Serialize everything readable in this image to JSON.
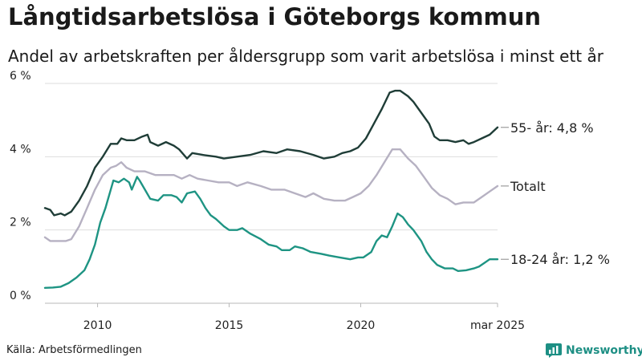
{
  "title": "Långtidsarbetslösa i Göteborgs kommun",
  "subtitle": "Andel av arbetskraften per åldersgrupp som varit arbetslösa i minst ett år",
  "source": "Källa: Arbetsförmedlingen",
  "brand": {
    "name": "Newsworthy",
    "icon": "newsworthy-logo-icon",
    "color": "#1d8f84"
  },
  "chart_data": {
    "type": "line",
    "xlim": [
      2008.0,
      2025.2
    ],
    "ylim": [
      0,
      6
    ],
    "grid": true,
    "x_ticks": [
      {
        "value": 2010,
        "label": "2010"
      },
      {
        "value": 2015,
        "label": "2015"
      },
      {
        "value": 2020,
        "label": "2020"
      },
      {
        "value": 2025.2,
        "label": "mar 2025"
      }
    ],
    "y_ticks": [
      {
        "value": 0,
        "label": "0 %"
      },
      {
        "value": 2,
        "label": "2 %"
      },
      {
        "value": 4,
        "label": "4 %"
      },
      {
        "value": 6,
        "label": "6 %"
      }
    ],
    "series": [
      {
        "name": "55- år",
        "end_label": "55- år: 4,8 %",
        "color": "#1f3d37",
        "points": [
          [
            2008.0,
            2.6
          ],
          [
            2008.2,
            2.55
          ],
          [
            2008.35,
            2.4
          ],
          [
            2008.6,
            2.45
          ],
          [
            2008.75,
            2.4
          ],
          [
            2009.0,
            2.5
          ],
          [
            2009.3,
            2.8
          ],
          [
            2009.6,
            3.2
          ],
          [
            2009.9,
            3.7
          ],
          [
            2010.2,
            4.0
          ],
          [
            2010.5,
            4.35
          ],
          [
            2010.75,
            4.35
          ],
          [
            2010.9,
            4.5
          ],
          [
            2011.1,
            4.45
          ],
          [
            2011.4,
            4.45
          ],
          [
            2011.7,
            4.55
          ],
          [
            2011.9,
            4.6
          ],
          [
            2012.0,
            4.4
          ],
          [
            2012.3,
            4.3
          ],
          [
            2012.6,
            4.4
          ],
          [
            2012.9,
            4.3
          ],
          [
            2013.1,
            4.2
          ],
          [
            2013.4,
            3.95
          ],
          [
            2013.6,
            4.1
          ],
          [
            2014.0,
            4.05
          ],
          [
            2014.5,
            4.0
          ],
          [
            2014.8,
            3.95
          ],
          [
            2015.3,
            4.0
          ],
          [
            2015.8,
            4.05
          ],
          [
            2016.3,
            4.15
          ],
          [
            2016.8,
            4.1
          ],
          [
            2017.2,
            4.2
          ],
          [
            2017.7,
            4.15
          ],
          [
            2018.2,
            4.05
          ],
          [
            2018.6,
            3.95
          ],
          [
            2019.0,
            4.0
          ],
          [
            2019.3,
            4.1
          ],
          [
            2019.6,
            4.15
          ],
          [
            2019.9,
            4.25
          ],
          [
            2020.2,
            4.5
          ],
          [
            2020.5,
            4.9
          ],
          [
            2020.8,
            5.3
          ],
          [
            2021.1,
            5.75
          ],
          [
            2021.3,
            5.8
          ],
          [
            2021.5,
            5.8
          ],
          [
            2021.8,
            5.65
          ],
          [
            2022.0,
            5.5
          ],
          [
            2022.3,
            5.2
          ],
          [
            2022.6,
            4.9
          ],
          [
            2022.8,
            4.55
          ],
          [
            2023.0,
            4.45
          ],
          [
            2023.3,
            4.45
          ],
          [
            2023.6,
            4.4
          ],
          [
            2023.9,
            4.45
          ],
          [
            2024.1,
            4.35
          ],
          [
            2024.3,
            4.4
          ],
          [
            2024.6,
            4.5
          ],
          [
            2024.9,
            4.6
          ],
          [
            2025.2,
            4.8
          ]
        ]
      },
      {
        "name": "Totalt",
        "end_label": "Totalt",
        "color": "#b6b1c2",
        "points": [
          [
            2008.0,
            1.8
          ],
          [
            2008.2,
            1.7
          ],
          [
            2008.5,
            1.7
          ],
          [
            2008.8,
            1.7
          ],
          [
            2009.0,
            1.75
          ],
          [
            2009.3,
            2.1
          ],
          [
            2009.6,
            2.6
          ],
          [
            2009.9,
            3.1
          ],
          [
            2010.2,
            3.5
          ],
          [
            2010.5,
            3.7
          ],
          [
            2010.7,
            3.75
          ],
          [
            2010.9,
            3.85
          ],
          [
            2011.1,
            3.7
          ],
          [
            2011.4,
            3.6
          ],
          [
            2011.8,
            3.6
          ],
          [
            2012.2,
            3.5
          ],
          [
            2012.6,
            3.5
          ],
          [
            2012.9,
            3.5
          ],
          [
            2013.2,
            3.4
          ],
          [
            2013.5,
            3.5
          ],
          [
            2013.8,
            3.4
          ],
          [
            2014.2,
            3.35
          ],
          [
            2014.6,
            3.3
          ],
          [
            2015.0,
            3.3
          ],
          [
            2015.3,
            3.2
          ],
          [
            2015.7,
            3.3
          ],
          [
            2016.2,
            3.2
          ],
          [
            2016.6,
            3.1
          ],
          [
            2017.1,
            3.1
          ],
          [
            2017.5,
            3.0
          ],
          [
            2017.9,
            2.9
          ],
          [
            2018.2,
            3.0
          ],
          [
            2018.6,
            2.85
          ],
          [
            2019.0,
            2.8
          ],
          [
            2019.4,
            2.8
          ],
          [
            2019.7,
            2.9
          ],
          [
            2020.0,
            3.0
          ],
          [
            2020.3,
            3.2
          ],
          [
            2020.6,
            3.5
          ],
          [
            2020.9,
            3.85
          ],
          [
            2021.2,
            4.2
          ],
          [
            2021.5,
            4.2
          ],
          [
            2021.8,
            3.95
          ],
          [
            2022.1,
            3.75
          ],
          [
            2022.4,
            3.45
          ],
          [
            2022.7,
            3.15
          ],
          [
            2023.0,
            2.95
          ],
          [
            2023.3,
            2.85
          ],
          [
            2023.6,
            2.7
          ],
          [
            2023.9,
            2.75
          ],
          [
            2024.3,
            2.75
          ],
          [
            2024.6,
            2.9
          ],
          [
            2024.9,
            3.05
          ],
          [
            2025.2,
            3.2
          ]
        ]
      },
      {
        "name": "18-24 år",
        "end_label": "18-24 år: 1,2 %",
        "color": "#1e9483",
        "points": [
          [
            2008.0,
            0.42
          ],
          [
            2008.3,
            0.43
          ],
          [
            2008.6,
            0.45
          ],
          [
            2008.9,
            0.55
          ],
          [
            2009.2,
            0.7
          ],
          [
            2009.5,
            0.9
          ],
          [
            2009.7,
            1.2
          ],
          [
            2009.9,
            1.6
          ],
          [
            2010.1,
            2.2
          ],
          [
            2010.3,
            2.6
          ],
          [
            2010.5,
            3.1
          ],
          [
            2010.6,
            3.35
          ],
          [
            2010.8,
            3.3
          ],
          [
            2011.0,
            3.4
          ],
          [
            2011.2,
            3.3
          ],
          [
            2011.3,
            3.1
          ],
          [
            2011.5,
            3.45
          ],
          [
            2011.6,
            3.35
          ],
          [
            2011.8,
            3.1
          ],
          [
            2012.0,
            2.85
          ],
          [
            2012.3,
            2.8
          ],
          [
            2012.5,
            2.95
          ],
          [
            2012.8,
            2.95
          ],
          [
            2013.0,
            2.9
          ],
          [
            2013.2,
            2.75
          ],
          [
            2013.4,
            3.0
          ],
          [
            2013.7,
            3.05
          ],
          [
            2013.9,
            2.85
          ],
          [
            2014.1,
            2.6
          ],
          [
            2014.3,
            2.4
          ],
          [
            2014.5,
            2.3
          ],
          [
            2014.8,
            2.1
          ],
          [
            2015.0,
            2.0
          ],
          [
            2015.3,
            2.0
          ],
          [
            2015.5,
            2.05
          ],
          [
            2015.8,
            1.9
          ],
          [
            2016.2,
            1.75
          ],
          [
            2016.5,
            1.6
          ],
          [
            2016.8,
            1.55
          ],
          [
            2017.0,
            1.45
          ],
          [
            2017.3,
            1.45
          ],
          [
            2017.5,
            1.55
          ],
          [
            2017.8,
            1.5
          ],
          [
            2018.1,
            1.4
          ],
          [
            2018.5,
            1.35
          ],
          [
            2018.8,
            1.3
          ],
          [
            2019.2,
            1.25
          ],
          [
            2019.6,
            1.2
          ],
          [
            2019.9,
            1.25
          ],
          [
            2020.1,
            1.25
          ],
          [
            2020.4,
            1.4
          ],
          [
            2020.6,
            1.7
          ],
          [
            2020.8,
            1.85
          ],
          [
            2021.0,
            1.8
          ],
          [
            2021.2,
            2.1
          ],
          [
            2021.4,
            2.45
          ],
          [
            2021.6,
            2.35
          ],
          [
            2021.8,
            2.15
          ],
          [
            2022.0,
            2.0
          ],
          [
            2022.3,
            1.7
          ],
          [
            2022.5,
            1.4
          ],
          [
            2022.7,
            1.2
          ],
          [
            2022.9,
            1.05
          ],
          [
            2023.2,
            0.95
          ],
          [
            2023.5,
            0.95
          ],
          [
            2023.7,
            0.88
          ],
          [
            2024.0,
            0.9
          ],
          [
            2024.3,
            0.95
          ],
          [
            2024.5,
            1.0
          ],
          [
            2024.7,
            1.1
          ],
          [
            2024.9,
            1.2
          ],
          [
            2025.2,
            1.2
          ]
        ]
      }
    ]
  }
}
